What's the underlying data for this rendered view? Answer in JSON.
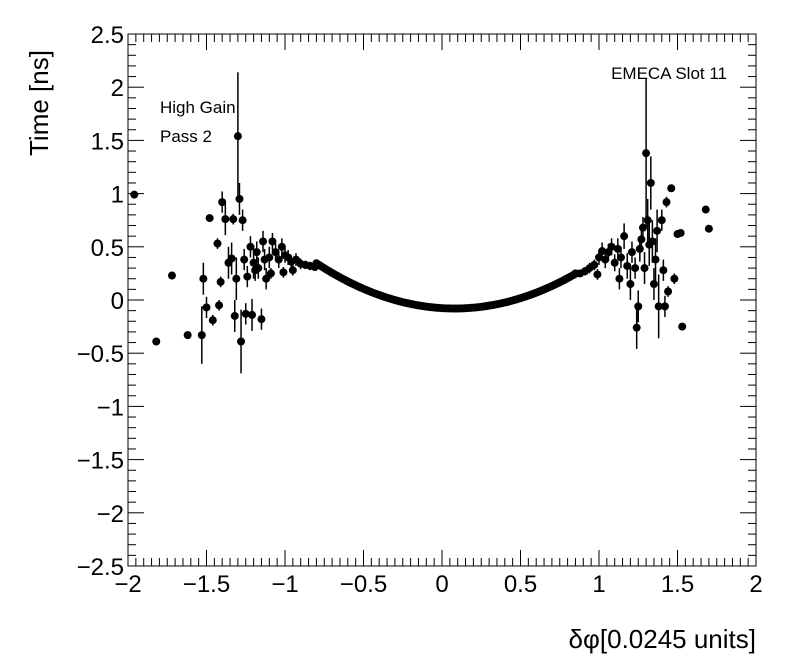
{
  "chart_data": {
    "type": "scatter",
    "xlabel": "δφ[0.0245 units]",
    "ylabel": "Time [ns]",
    "xlim": [
      -2,
      2
    ],
    "ylim": [
      -2.5,
      2.5
    ],
    "x_ticks": [
      -2,
      -1.5,
      -1,
      -0.5,
      0,
      0.5,
      1,
      1.5,
      2
    ],
    "x_tick_labels": [
      "−2",
      "−1.5",
      "−1",
      "−0.5",
      "0",
      "0.5",
      "1",
      "1.5",
      "2"
    ],
    "y_ticks": [
      -2.5,
      -2,
      -1.5,
      -1,
      -0.5,
      0,
      0.5,
      1,
      1.5,
      2,
      2.5
    ],
    "y_tick_labels": [
      "−2.5",
      "−2",
      "−1.5",
      "−1",
      "−0.5",
      "0",
      "0.5",
      "1",
      "1.5",
      "2",
      "2.5"
    ],
    "annotations": {
      "gain": "High Gain",
      "pass": "Pass 2",
      "detector": "EMECA Slot 11"
    },
    "grid": false,
    "legend": "none",
    "marker_color": "#000000",
    "points": [
      {
        "x": -1.96,
        "y": 0.99,
        "err": 0.02
      },
      {
        "x": -1.82,
        "y": -0.39,
        "err": 0.02
      },
      {
        "x": -1.72,
        "y": 0.23,
        "err": 0.02
      },
      {
        "x": -1.62,
        "y": -0.33,
        "err": 0.02
      },
      {
        "x": -1.53,
        "y": -0.33,
        "err": 0.27
      },
      {
        "x": -1.52,
        "y": 0.2,
        "err": 0.15
      },
      {
        "x": -1.5,
        "y": -0.07,
        "err": 0.1
      },
      {
        "x": -1.48,
        "y": 0.77,
        "err": 0.02
      },
      {
        "x": -1.46,
        "y": -0.19,
        "err": 0.05
      },
      {
        "x": -1.43,
        "y": 0.53,
        "err": 0.05
      },
      {
        "x": -1.42,
        "y": -0.05,
        "err": 0.05
      },
      {
        "x": -1.41,
        "y": 0.17,
        "err": 0.05
      },
      {
        "x": -1.4,
        "y": 0.92,
        "err": 0.1
      },
      {
        "x": -1.38,
        "y": 0.76,
        "err": 0.15
      },
      {
        "x": -1.36,
        "y": 0.35,
        "err": 0.15
      },
      {
        "x": -1.34,
        "y": 0.39,
        "err": 0.15
      },
      {
        "x": -1.33,
        "y": 0.76,
        "err": 0.05
      },
      {
        "x": -1.32,
        "y": -0.15,
        "err": 0.15
      },
      {
        "x": -1.31,
        "y": 0.2,
        "err": 0.2
      },
      {
        "x": -1.3,
        "y": 1.54,
        "err": 0.6
      },
      {
        "x": -1.29,
        "y": 0.95,
        "err": 0.15
      },
      {
        "x": -1.28,
        "y": -0.39,
        "err": 0.3
      },
      {
        "x": -1.27,
        "y": 0.75,
        "err": 0.1
      },
      {
        "x": -1.26,
        "y": 0.38,
        "err": 0.1
      },
      {
        "x": -1.25,
        "y": -0.13,
        "err": 0.1
      },
      {
        "x": -1.24,
        "y": 0.22,
        "err": 0.1
      },
      {
        "x": -1.22,
        "y": 0.5,
        "err": 0.1
      },
      {
        "x": -1.21,
        "y": -0.14,
        "err": 0.15
      },
      {
        "x": -1.2,
        "y": 0.35,
        "err": 0.15
      },
      {
        "x": -1.19,
        "y": 0.28,
        "err": 0.1
      },
      {
        "x": -1.18,
        "y": 0.45,
        "err": 0.1
      },
      {
        "x": -1.17,
        "y": 0.3,
        "err": 0.1
      },
      {
        "x": -1.15,
        "y": -0.18,
        "err": 0.1
      },
      {
        "x": -1.14,
        "y": 0.55,
        "err": 0.1
      },
      {
        "x": -1.13,
        "y": 0.38,
        "err": 0.1
      },
      {
        "x": -1.12,
        "y": 0.2,
        "err": 0.1
      },
      {
        "x": -1.1,
        "y": 0.4,
        "err": 0.1
      },
      {
        "x": -1.08,
        "y": 0.55,
        "err": 0.08
      },
      {
        "x": -1.06,
        "y": 0.45,
        "err": 0.08
      },
      {
        "x": -1.04,
        "y": 0.38,
        "err": 0.08
      },
      {
        "x": -1.02,
        "y": 0.5,
        "err": 0.08
      },
      {
        "x": -1.0,
        "y": 0.42,
        "err": 0.07
      },
      {
        "x": -0.98,
        "y": 0.4,
        "err": 0.07
      },
      {
        "x": -0.96,
        "y": 0.36,
        "err": 0.06
      },
      {
        "x": -0.93,
        "y": 0.38,
        "err": 0.06
      },
      {
        "x": -0.9,
        "y": 0.34,
        "err": 0.05
      },
      {
        "x": -0.87,
        "y": 0.33,
        "err": 0.04
      },
      {
        "x": -0.84,
        "y": 0.32,
        "err": 0.04
      },
      {
        "x": -0.81,
        "y": 0.31,
        "err": 0.03
      },
      {
        "x": -1.09,
        "y": 0.25,
        "err": 0.05
      },
      {
        "x": -1.01,
        "y": 0.26,
        "err": 0.05
      },
      {
        "x": -0.95,
        "y": 0.28,
        "err": 0.05
      },
      {
        "x": 0.85,
        "y": 0.25,
        "err": 0.02
      },
      {
        "x": 0.88,
        "y": 0.25,
        "err": 0.03
      },
      {
        "x": 0.91,
        "y": 0.27,
        "err": 0.04
      },
      {
        "x": 0.94,
        "y": 0.3,
        "err": 0.05
      },
      {
        "x": 0.97,
        "y": 0.33,
        "err": 0.05
      },
      {
        "x": 0.99,
        "y": 0.24,
        "err": 0.05
      },
      {
        "x": 1.0,
        "y": 0.4,
        "err": 0.07
      },
      {
        "x": 1.02,
        "y": 0.46,
        "err": 0.08
      },
      {
        "x": 1.04,
        "y": 0.38,
        "err": 0.08
      },
      {
        "x": 1.06,
        "y": 0.45,
        "err": 0.08
      },
      {
        "x": 1.08,
        "y": 0.5,
        "err": 0.08
      },
      {
        "x": 1.1,
        "y": 0.35,
        "err": 0.08
      },
      {
        "x": 1.12,
        "y": 0.48,
        "err": 0.1
      },
      {
        "x": 1.13,
        "y": 0.2,
        "err": 0.1
      },
      {
        "x": 1.14,
        "y": 0.4,
        "err": 0.1
      },
      {
        "x": 1.16,
        "y": 0.6,
        "err": 0.12
      },
      {
        "x": 1.18,
        "y": 0.32,
        "err": 0.12
      },
      {
        "x": 1.2,
        "y": 0.15,
        "err": 0.15
      },
      {
        "x": 1.21,
        "y": 0.45,
        "err": 0.1
      },
      {
        "x": 1.23,
        "y": 0.3,
        "err": 0.1
      },
      {
        "x": 1.24,
        "y": -0.26,
        "err": 0.2
      },
      {
        "x": 1.25,
        "y": -0.06,
        "err": 0.15
      },
      {
        "x": 1.26,
        "y": 0.48,
        "err": 0.12
      },
      {
        "x": 1.27,
        "y": 0.57,
        "err": 0.1
      },
      {
        "x": 1.28,
        "y": 0.68,
        "err": 0.1
      },
      {
        "x": 1.29,
        "y": 0.3,
        "err": 0.15
      },
      {
        "x": 1.3,
        "y": 1.38,
        "err": 0.7
      },
      {
        "x": 1.31,
        "y": 0.75,
        "err": 0.2
      },
      {
        "x": 1.32,
        "y": 0.52,
        "err": 0.2
      },
      {
        "x": 1.33,
        "y": 1.1,
        "err": 0.25
      },
      {
        "x": 1.34,
        "y": 0.55,
        "err": 0.2
      },
      {
        "x": 1.35,
        "y": 0.15,
        "err": 0.15
      },
      {
        "x": 1.36,
        "y": 0.38,
        "err": 0.2
      },
      {
        "x": 1.37,
        "y": 0.65,
        "err": 0.2
      },
      {
        "x": 1.38,
        "y": -0.06,
        "err": 0.3
      },
      {
        "x": 1.4,
        "y": 0.75,
        "err": 0.1
      },
      {
        "x": 1.41,
        "y": 0.28,
        "err": 0.1
      },
      {
        "x": 1.42,
        "y": -0.06,
        "err": 0.1
      },
      {
        "x": 1.43,
        "y": 0.92,
        "err": 0.05
      },
      {
        "x": 1.44,
        "y": 0.08,
        "err": 0.05
      },
      {
        "x": 1.46,
        "y": 1.05,
        "err": 0.02
      },
      {
        "x": 1.48,
        "y": 0.2,
        "err": 0.05
      },
      {
        "x": 1.5,
        "y": 0.62,
        "err": 0.02
      },
      {
        "x": 1.52,
        "y": 0.63,
        "err": 0.02
      },
      {
        "x": 1.53,
        "y": -0.25,
        "err": 0.02
      },
      {
        "x": 1.68,
        "y": 0.85,
        "err": 0.02
      },
      {
        "x": 1.7,
        "y": 0.67,
        "err": 0.02
      }
    ],
    "band": {
      "x_start": -0.8,
      "x_end": 0.85,
      "spacing": 0.015,
      "curve": {
        "center_x": 0.08,
        "min_y": -0.08,
        "k": 0.55
      }
    }
  }
}
